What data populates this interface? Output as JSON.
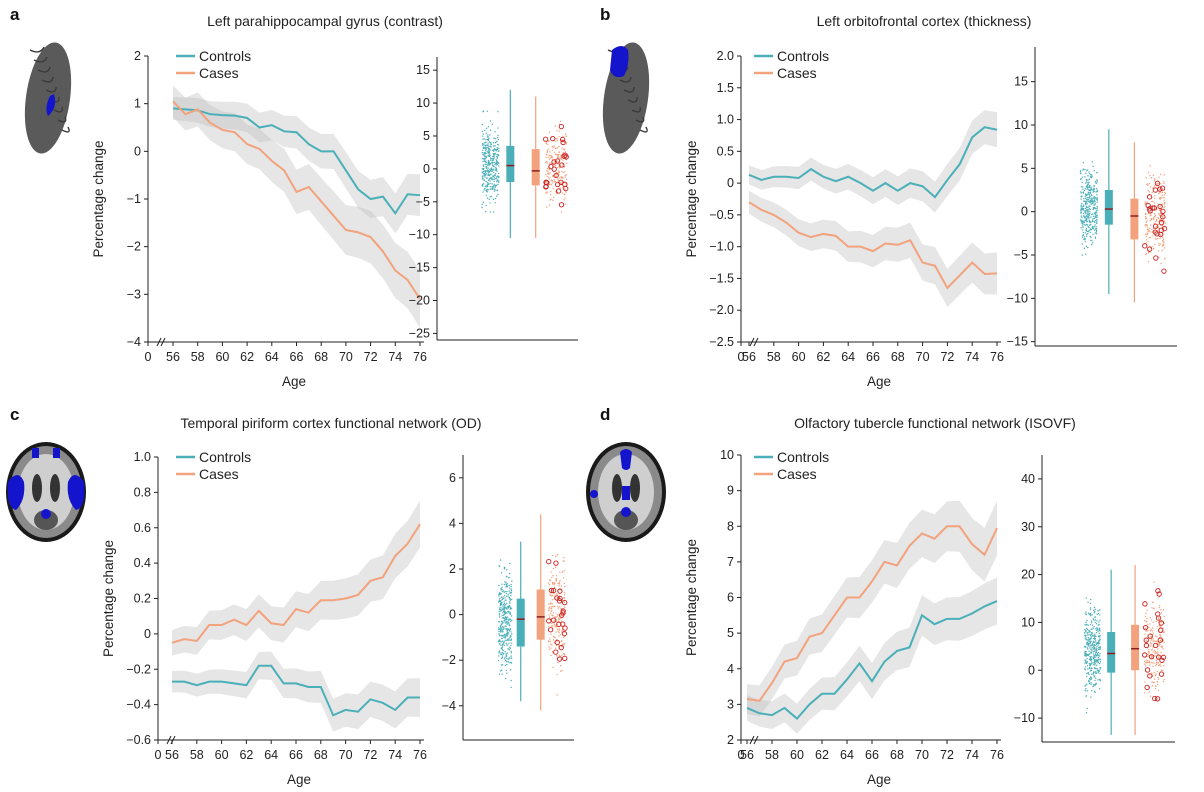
{
  "colors": {
    "controls": "#4AAFB8",
    "cases": "#F2A27C",
    "band": "#d8d8d8",
    "brain_roi": "#1414cc",
    "case_marker": "#cc2020"
  },
  "legend": {
    "controls": "Controls",
    "cases": "Cases"
  },
  "chart_data": [
    {
      "panel": "a",
      "type": "line",
      "title": "Left parahippocampal gyrus (contrast)",
      "xlabel": "Age",
      "ylabel": "Percentage change",
      "x_ticks": [
        "0",
        "56",
        "58",
        "60",
        "62",
        "64",
        "66",
        "68",
        "70",
        "72",
        "74",
        "76"
      ],
      "y_ticks": [
        "2",
        "1",
        "0",
        "−1",
        "−2",
        "−3",
        "−4"
      ],
      "ylim": [
        -4,
        2
      ],
      "x": [
        56,
        57,
        58,
        59,
        60,
        61,
        62,
        63,
        64,
        65,
        66,
        67,
        68,
        69,
        70,
        71,
        72,
        73,
        74,
        75,
        76
      ],
      "series": [
        {
          "name": "Controls",
          "values": [
            0.9,
            0.88,
            0.86,
            0.78,
            0.76,
            0.75,
            0.7,
            0.5,
            0.55,
            0.42,
            0.4,
            0.15,
            0.0,
            0.0,
            -0.4,
            -0.8,
            -1.0,
            -0.95,
            -1.3,
            -0.9,
            -0.92
          ],
          "band": 0.4
        },
        {
          "name": "Cases",
          "values": [
            1.05,
            0.78,
            0.88,
            0.6,
            0.45,
            0.4,
            0.15,
            0.05,
            -0.2,
            -0.4,
            -0.85,
            -0.75,
            -1.05,
            -1.35,
            -1.65,
            -1.7,
            -1.8,
            -2.1,
            -2.5,
            -2.7,
            -3.1
          ],
          "band": 0.55
        }
      ],
      "box": {
        "y_ticks": [
          "15",
          "10",
          "5",
          "0",
          "−5",
          "−10",
          "−15",
          "−20",
          "−25"
        ],
        "ylim": [
          -26,
          17
        ],
        "controls": {
          "q1": -2,
          "median": 0.5,
          "q3": 3.5,
          "min": -10.5,
          "max": 12
        },
        "cases": {
          "q1": -2.5,
          "median": -0.3,
          "q3": 3,
          "min": -10.5,
          "max": 11
        }
      }
    },
    {
      "panel": "b",
      "type": "line",
      "title": "Left orbitofrontal cortex (thickness)",
      "xlabel": "Age",
      "ylabel": "Percentage change",
      "x_ticks": [
        "0",
        "56",
        "58",
        "60",
        "62",
        "64",
        "66",
        "68",
        "70",
        "72",
        "74",
        "76"
      ],
      "y_ticks": [
        "2.0",
        "1.5",
        "1.0",
        "0.5",
        "0",
        "−0.5",
        "−1.0",
        "−1.5",
        "−2.0",
        "−2.5"
      ],
      "ylim": [
        -2.5,
        2.0
      ],
      "x": [
        56,
        57,
        58,
        59,
        60,
        61,
        62,
        63,
        64,
        65,
        66,
        67,
        68,
        69,
        70,
        71,
        72,
        73,
        74,
        75,
        76
      ],
      "series": [
        {
          "name": "Controls",
          "values": [
            0.13,
            0.05,
            0.1,
            0.1,
            0.08,
            0.22,
            0.1,
            0.03,
            0.1,
            0.0,
            -0.12,
            0.0,
            -0.12,
            0.0,
            -0.05,
            -0.22,
            0.05,
            0.3,
            0.72,
            0.88,
            0.84
          ],
          "band": 0.25
        },
        {
          "name": "Cases",
          "values": [
            -0.3,
            -0.42,
            -0.5,
            -0.62,
            -0.78,
            -0.85,
            -0.8,
            -0.83,
            -1.0,
            -1.0,
            -1.07,
            -0.95,
            -0.97,
            -0.9,
            -1.25,
            -1.3,
            -1.65,
            -1.45,
            -1.25,
            -1.43,
            -1.42
          ],
          "band": 0.3
        }
      ],
      "box": {
        "y_ticks": [
          "15",
          "10",
          "5",
          "0",
          "−5",
          "−10",
          "−15"
        ],
        "ylim": [
          -15.5,
          19
        ],
        "controls": {
          "q1": -1.5,
          "median": 0.3,
          "q3": 2.5,
          "min": -9.5,
          "max": 9.5
        },
        "cases": {
          "q1": -3.2,
          "median": -0.5,
          "q3": 1.5,
          "min": -10.5,
          "max": 8
        }
      }
    },
    {
      "panel": "c",
      "type": "line",
      "title": "Temporal piriform cortex functional network (OD)",
      "xlabel": "Age",
      "ylabel": "Percentage change",
      "x_ticks": [
        "0",
        "56",
        "58",
        "60",
        "62",
        "64",
        "66",
        "68",
        "70",
        "72",
        "74",
        "76"
      ],
      "y_ticks": [
        "1.0",
        "0.8",
        "0.6",
        "0.4",
        "0.2",
        "0",
        "−0.2",
        "−0.4",
        "−0.6"
      ],
      "ylim": [
        -0.6,
        1.0
      ],
      "x": [
        56,
        57,
        58,
        59,
        60,
        61,
        62,
        63,
        64,
        65,
        66,
        67,
        68,
        69,
        70,
        71,
        72,
        73,
        74,
        75,
        76
      ],
      "series": [
        {
          "name": "Controls",
          "values": [
            -0.27,
            -0.27,
            -0.29,
            -0.27,
            -0.27,
            -0.28,
            -0.29,
            -0.18,
            -0.18,
            -0.28,
            -0.28,
            -0.3,
            -0.3,
            -0.46,
            -0.43,
            -0.44,
            -0.37,
            -0.39,
            -0.43,
            -0.36,
            -0.36
          ],
          "band": 0.1
        },
        {
          "name": "Cases",
          "values": [
            -0.05,
            -0.03,
            -0.04,
            0.05,
            0.05,
            0.08,
            0.05,
            0.13,
            0.06,
            0.05,
            0.14,
            0.12,
            0.19,
            0.19,
            0.2,
            0.22,
            0.3,
            0.32,
            0.44,
            0.51,
            0.62
          ],
          "band": 0.12
        }
      ],
      "box": {
        "y_ticks": [
          "6",
          "4",
          "2",
          "0",
          "−2",
          "−4"
        ],
        "ylim": [
          -5.5,
          7
        ],
        "controls": {
          "q1": -1.4,
          "median": -0.2,
          "q3": 0.7,
          "min": -3.8,
          "max": 3.2
        },
        "cases": {
          "q1": -1.1,
          "median": -0.1,
          "q3": 1.1,
          "min": -4.2,
          "max": 4.4
        }
      }
    },
    {
      "panel": "d",
      "type": "line",
      "title": "Olfactory tubercle functional network (ISOVF)",
      "xlabel": "Age",
      "ylabel": "Percentage change",
      "x_ticks": [
        "0",
        "56",
        "58",
        "60",
        "62",
        "64",
        "66",
        "68",
        "70",
        "72",
        "74",
        "76"
      ],
      "y_ticks": [
        "10",
        "9",
        "8",
        "7",
        "6",
        "5",
        "4",
        "3",
        "2"
      ],
      "ylim": [
        2,
        10
      ],
      "x": [
        56,
        57,
        58,
        59,
        60,
        61,
        62,
        63,
        64,
        65,
        66,
        67,
        68,
        69,
        70,
        71,
        72,
        73,
        74,
        75,
        76
      ],
      "series": [
        {
          "name": "Controls",
          "values": [
            2.9,
            2.75,
            2.7,
            2.9,
            2.6,
            3.0,
            3.3,
            3.3,
            3.7,
            4.15,
            3.65,
            4.2,
            4.5,
            4.6,
            5.5,
            5.25,
            5.4,
            5.4,
            5.55,
            5.75,
            5.9
          ],
          "band": 0.6
        },
        {
          "name": "Cases",
          "values": [
            3.15,
            3.1,
            3.6,
            4.2,
            4.3,
            4.9,
            5.0,
            5.5,
            6.0,
            6.0,
            6.45,
            7.0,
            6.9,
            7.45,
            7.8,
            7.65,
            8.0,
            8.0,
            7.5,
            7.2,
            7.95
          ],
          "band": 0.7
        }
      ],
      "box": {
        "y_ticks": [
          "40",
          "30",
          "20",
          "10",
          "0",
          "−10"
        ],
        "ylim": [
          -15,
          45
        ],
        "controls": {
          "q1": -0.5,
          "median": 3.5,
          "q3": 8,
          "min": -13.5,
          "max": 21
        },
        "cases": {
          "q1": 0,
          "median": 4.5,
          "q3": 9.5,
          "min": -13.5,
          "max": 22
        }
      }
    }
  ]
}
